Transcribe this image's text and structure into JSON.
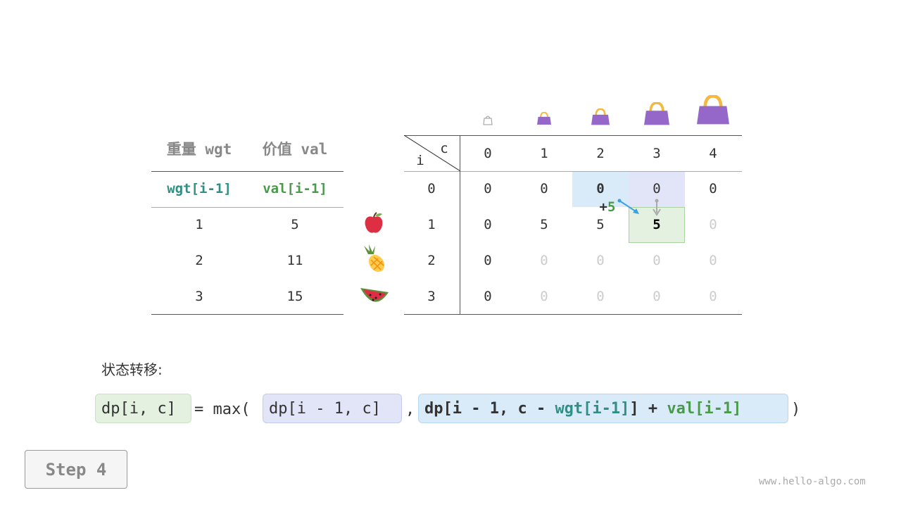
{
  "left_table": {
    "headers": [
      "重量 wgt",
      "价值 val"
    ],
    "subheaders": [
      "wgt[i-1]",
      "val[i-1]"
    ],
    "rows": [
      [
        "1",
        "5"
      ],
      [
        "2",
        "11"
      ],
      [
        "3",
        "15"
      ]
    ]
  },
  "items": [
    {
      "icon": "apple-icon"
    },
    {
      "icon": "pineapple-icon"
    },
    {
      "icon": "watermelon-icon"
    }
  ],
  "dp_table": {
    "corner_c": "c",
    "corner_i": "i",
    "col_headers": [
      "0",
      "1",
      "2",
      "3",
      "4"
    ],
    "row_headers": [
      "0",
      "1",
      "2",
      "3"
    ],
    "rows": [
      [
        "0",
        "0",
        "0",
        "0",
        "0"
      ],
      [
        "0",
        "5",
        "5",
        "5",
        "0"
      ],
      [
        "0",
        "0",
        "0",
        "0",
        "0"
      ],
      [
        "0",
        "0",
        "0",
        "0",
        "0"
      ]
    ],
    "filled": [
      [
        true,
        true,
        true,
        true,
        true
      ],
      [
        true,
        true,
        true,
        true,
        false
      ],
      [
        true,
        false,
        false,
        false,
        false
      ],
      [
        true,
        false,
        false,
        false,
        false
      ]
    ],
    "annotation": {
      "plus": "+",
      "value": "5"
    }
  },
  "formula": {
    "label": "状态转移:",
    "lhs": "dp[i, c]",
    "eq": " = max(",
    "arg1": "dp[i - 1, c]",
    "comma": ",",
    "arg2_a": "dp[i - 1, c - ",
    "arg2_wgt": "wgt[i-1]",
    "arg2_b": "] + ",
    "arg2_val": "val[i-1]",
    "close": ")"
  },
  "step_button": "Step 4",
  "watermark": "www.hello-algo.com",
  "colors": {
    "blue_cell": "#d9ebf9",
    "lavender_cell": "#e2e5f8",
    "green_cell": "#e4f1e1",
    "teal": "#2f8f84",
    "green": "#4a9a4a",
    "bag": "#9467c9",
    "handle": "#f5b942"
  }
}
